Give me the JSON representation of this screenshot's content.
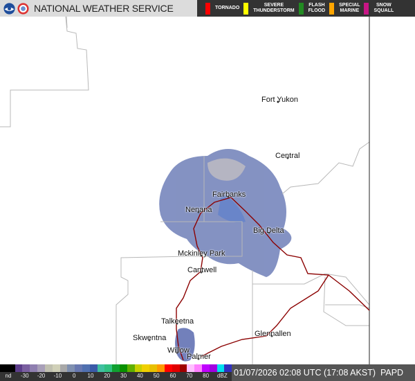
{
  "header": {
    "title": "NATIONAL WEATHER SERVICE",
    "logos": [
      "noaa-logo",
      "nws-logo"
    ]
  },
  "alerts": [
    {
      "label": "TORNADO",
      "color": "#ff0000"
    },
    {
      "label": "SEVERE\nTHUNDERSTORM",
      "color": "#ffff00"
    },
    {
      "label": "FLASH\nFLOOD",
      "color": "#228b22"
    },
    {
      "label": "SPECIAL\nMARINE",
      "color": "#ffa500"
    },
    {
      "label": "SNOW\nSQUALL",
      "color": "#c71585"
    }
  ],
  "cities": [
    {
      "name": "Fort Yukon"
    },
    {
      "name": "Central"
    },
    {
      "name": "Fairbanks"
    },
    {
      "name": "Nenana"
    },
    {
      "name": "Big Delta"
    },
    {
      "name": "Mckinley Park"
    },
    {
      "name": "Cantwell"
    },
    {
      "name": "Talkeetna"
    },
    {
      "name": "Skwentna"
    },
    {
      "name": "Willow"
    },
    {
      "name": "Palmer"
    },
    {
      "name": "Glennallen"
    }
  ],
  "legend": {
    "ticks": [
      "nd",
      "-30",
      "-20",
      "-10",
      "0",
      "10",
      "20",
      "30",
      "40",
      "50",
      "60",
      "70",
      "80",
      "dBZ"
    ],
    "colors": [
      "#000000",
      "#000000",
      "#5c3d8a",
      "#7a5fa0",
      "#8f7fb0",
      "#a89fb8",
      "#c0c0b0",
      "#d0d0b8",
      "#a8a8a8",
      "#8090b0",
      "#6878b0",
      "#5070b0",
      "#3a5aa8",
      "#40c0a0",
      "#30c080",
      "#10a030",
      "#089000",
      "#60b000",
      "#c8d000",
      "#f0d000",
      "#e8c000",
      "#ff9900",
      "#ff0000",
      "#e00000",
      "#a00000",
      "#ffc0ff",
      "#ff80ff",
      "#c000ff",
      "#a000e0",
      "#00e0f0",
      "#3030c0"
    ]
  },
  "footer": {
    "timestamp": "01/07/2026 02:08 UTC (17:08 AKST)",
    "station": "PAPD"
  }
}
